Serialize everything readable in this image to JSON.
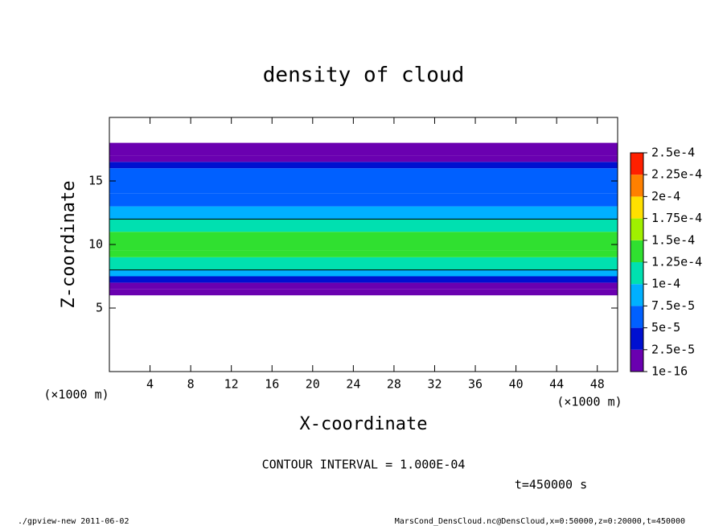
{
  "chart_data": {
    "type": "contour",
    "title": "density of cloud",
    "xlabel": "X-coordinate",
    "ylabel": "Z-coordinate",
    "x_unit": "(×1000 m)",
    "y_unit": "(×1000 m)",
    "xlim": [
      0,
      50
    ],
    "ylim": [
      0,
      20
    ],
    "xticks": [
      4,
      8,
      12,
      16,
      20,
      24,
      28,
      32,
      36,
      40,
      44,
      48
    ],
    "yticks": [
      5,
      10,
      15
    ],
    "profile": {
      "z_bounds": [
        6,
        6.5,
        7,
        7.5,
        8,
        9,
        9.5,
        11,
        12,
        13,
        14,
        15,
        16,
        16.5,
        17,
        18
      ],
      "values": [
        1e-05,
        2e-05,
        4e-05,
        8e-05,
        0.00011,
        0.000125,
        0.00013,
        0.00011,
        9e-05,
        7e-05,
        6e-05,
        5e-05,
        3e-05,
        1e-05,
        5e-06
      ]
    },
    "colorbar": {
      "ticks": [
        {
          "value": 1e-16,
          "label": "1e-16"
        },
        {
          "value": 2.5e-05,
          "label": "2.5e-5"
        },
        {
          "value": 5e-05,
          "label": "5e-5"
        },
        {
          "value": 7.5e-05,
          "label": "7.5e-5"
        },
        {
          "value": 0.0001,
          "label": "1e-4"
        },
        {
          "value": 0.000125,
          "label": "1.25e-4"
        },
        {
          "value": 0.00015,
          "label": "1.5e-4"
        },
        {
          "value": 0.000175,
          "label": "1.75e-4"
        },
        {
          "value": 0.0002,
          "label": "2e-4"
        },
        {
          "value": 0.000225,
          "label": "2.25e-4"
        },
        {
          "value": 0.00025,
          "label": "2.5e-4"
        }
      ],
      "colors": [
        "#6a00b0",
        "#0010d0",
        "#0060ff",
        "#00b0ff",
        "#00e0b0",
        "#30e030",
        "#a0f000",
        "#ffe000",
        "#ff8000",
        "#ff2000"
      ]
    },
    "contour_interval": {
      "value": 0.0001,
      "label": "CONTOUR INTERVAL = 1.000E-04"
    },
    "time_label": "t=450000 s",
    "footer_left": "./gpview-new  2011-06-02",
    "footer_right": "MarsCond_DensCloud.nc@DensCloud,x=0:50000,z=0:20000,t=450000"
  }
}
